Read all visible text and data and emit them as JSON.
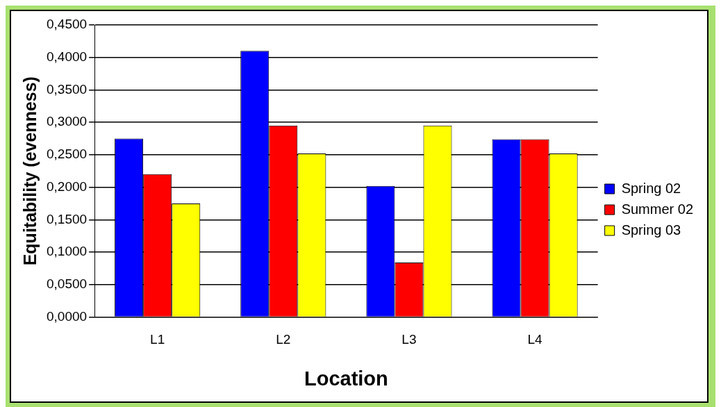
{
  "chart_data": {
    "type": "bar",
    "xlabel": "Location",
    "ylabel": "Equitability (evenness)",
    "categories": [
      "L1",
      "L2",
      "L3",
      "L4"
    ],
    "series": [
      {
        "name": "Spring 02",
        "color": "#0000ff",
        "values": [
          0.275,
          0.41,
          0.202,
          0.274
        ]
      },
      {
        "name": "Summer 02",
        "color": "#ff0000",
        "values": [
          0.22,
          0.295,
          0.084,
          0.274
        ]
      },
      {
        "name": "Spring 03",
        "color": "#ffff00",
        "values": [
          0.175,
          0.252,
          0.295,
          0.252
        ]
      }
    ],
    "ylim": [
      0,
      0.45
    ],
    "yticks": [
      {
        "value": 0,
        "label": "0,0000"
      },
      {
        "value": 0.05,
        "label": "0,0500"
      },
      {
        "value": 0.1,
        "label": "0,1000"
      },
      {
        "value": 0.15,
        "label": "0,1500"
      },
      {
        "value": 0.2,
        "label": "0,2000"
      },
      {
        "value": 0.25,
        "label": "0,2500"
      },
      {
        "value": 0.3,
        "label": "0,3000"
      },
      {
        "value": 0.35,
        "label": "0,3500"
      },
      {
        "value": 0.4,
        "label": "0,4000"
      },
      {
        "value": 0.45,
        "label": "0,4500"
      }
    ],
    "grid": "y",
    "legend": "right"
  }
}
